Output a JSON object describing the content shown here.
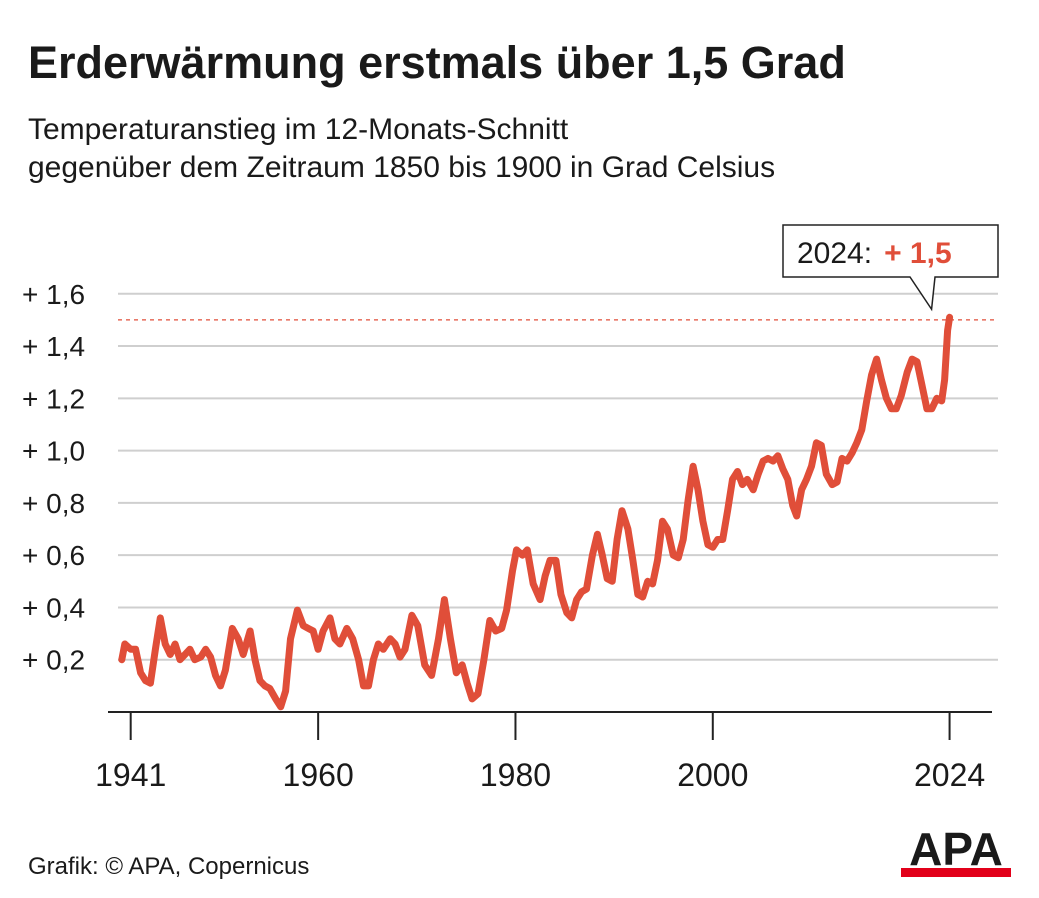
{
  "chart_data": {
    "type": "line",
    "title": "Erderwärmung erstmals über 1,5 Grad",
    "subtitle": [
      "Temperaturanstieg im 12-Monats-Schnitt",
      "gegenüber dem Zeitraum 1850 bis 1900 in Grad Celsius"
    ],
    "color": "#e04e39",
    "x": [
      1940.1,
      1940.4,
      1941.0,
      1941.5,
      1942.0,
      1942.5,
      1943.0,
      1943.5,
      1944.0,
      1944.5,
      1945.0,
      1945.5,
      1946.0,
      1946.5,
      1947.0,
      1947.5,
      1948.1,
      1948.6,
      1949.1,
      1949.6,
      1950.1,
      1950.6,
      1951.3,
      1951.9,
      1952.4,
      1953.1,
      1953.6,
      1954.1,
      1954.6,
      1955.1,
      1955.7,
      1956.2,
      1956.7,
      1957.2,
      1957.9,
      1958.5,
      1959.0,
      1959.5,
      1960.0,
      1960.5,
      1961.2,
      1961.7,
      1962.2,
      1962.9,
      1963.5,
      1964.1,
      1964.6,
      1965.1,
      1965.6,
      1966.1,
      1966.6,
      1967.3,
      1967.8,
      1968.3,
      1968.8,
      1969.5,
      1970.1,
      1970.8,
      1971.5,
      1972.2,
      1972.8,
      1973.4,
      1974.0,
      1974.6,
      1975.1,
      1975.6,
      1976.2,
      1976.8,
      1977.4,
      1978.0,
      1978.6,
      1979.1,
      1979.7,
      1980.1,
      1980.7,
      1981.2,
      1981.8,
      1982.5,
      1983.0,
      1983.5,
      1984.1,
      1984.6,
      1985.2,
      1985.7,
      1986.2,
      1986.7,
      1987.2,
      1987.8,
      1988.3,
      1988.8,
      1989.3,
      1989.8,
      1990.3,
      1990.8,
      1991.4,
      1991.9,
      1992.4,
      1992.9,
      1993.4,
      1993.9,
      1994.4,
      1994.9,
      1995.4,
      1996.0,
      1996.5,
      1997.0,
      1997.5,
      1998.0,
      1998.5,
      1999.0,
      1999.5,
      2000.0,
      2000.5,
      2001.0,
      2001.5,
      2002.0,
      2002.5,
      2003.0,
      2003.5,
      2004.1,
      2004.6,
      2005.1,
      2005.6,
      2006.1,
      2006.6,
      2007.1,
      2007.6,
      2008.1,
      2008.5,
      2009.0,
      2009.5,
      2010.0,
      2010.5,
      2011.0,
      2011.5,
      2012.1,
      2012.6,
      2013.1,
      2013.6,
      2014.1,
      2014.6,
      2015.1,
      2015.6,
      2016.1,
      2016.6,
      2017.1,
      2017.6,
      2018.1,
      2018.6,
      2019.1,
      2019.7,
      2020.2,
      2020.7,
      2021.2,
      2021.7,
      2022.2,
      2022.7,
      2023.2,
      2023.5,
      2023.8,
      2024.0
    ],
    "values": [
      0.2,
      0.26,
      0.24,
      0.24,
      0.15,
      0.12,
      0.11,
      0.24,
      0.36,
      0.26,
      0.22,
      0.26,
      0.2,
      0.22,
      0.24,
      0.2,
      0.21,
      0.24,
      0.21,
      0.14,
      0.1,
      0.16,
      0.32,
      0.28,
      0.22,
      0.31,
      0.2,
      0.12,
      0.1,
      0.09,
      0.05,
      0.02,
      0.08,
      0.28,
      0.39,
      0.33,
      0.32,
      0.31,
      0.24,
      0.31,
      0.36,
      0.28,
      0.26,
      0.32,
      0.28,
      0.2,
      0.1,
      0.1,
      0.2,
      0.26,
      0.24,
      0.28,
      0.26,
      0.21,
      0.24,
      0.37,
      0.33,
      0.18,
      0.14,
      0.28,
      0.43,
      0.28,
      0.15,
      0.18,
      0.11,
      0.05,
      0.07,
      0.2,
      0.35,
      0.31,
      0.32,
      0.39,
      0.54,
      0.62,
      0.6,
      0.62,
      0.49,
      0.43,
      0.52,
      0.58,
      0.58,
      0.45,
      0.38,
      0.36,
      0.43,
      0.46,
      0.47,
      0.6,
      0.68,
      0.6,
      0.51,
      0.5,
      0.66,
      0.77,
      0.7,
      0.58,
      0.45,
      0.44,
      0.5,
      0.49,
      0.58,
      0.73,
      0.7,
      0.6,
      0.59,
      0.66,
      0.81,
      0.94,
      0.85,
      0.73,
      0.64,
      0.63,
      0.66,
      0.66,
      0.77,
      0.89,
      0.92,
      0.87,
      0.89,
      0.85,
      0.91,
      0.96,
      0.97,
      0.96,
      0.98,
      0.93,
      0.89,
      0.79,
      0.75,
      0.85,
      0.89,
      0.94,
      1.03,
      1.02,
      0.91,
      0.87,
      0.88,
      0.97,
      0.96,
      0.99,
      1.03,
      1.08,
      1.19,
      1.29,
      1.35,
      1.27,
      1.2,
      1.16,
      1.16,
      1.21,
      1.3,
      1.35,
      1.34,
      1.25,
      1.16,
      1.16,
      1.2,
      1.19,
      1.27,
      1.46,
      1.51
    ],
    "xlim": [
      1938.7,
      2028.3
    ],
    "xticks": [
      1941,
      1960,
      1980,
      2000,
      2024
    ],
    "ylim": [
      0,
      1.65
    ],
    "yticks": [
      {
        "value": 0.2,
        "label": "+ 0,2"
      },
      {
        "value": 0.4,
        "label": "+ 0,4"
      },
      {
        "value": 0.6,
        "label": "+ 0,6"
      },
      {
        "value": 0.8,
        "label": "+ 0,8"
      },
      {
        "value": 1.0,
        "label": "+ 1,0"
      },
      {
        "value": 1.2,
        "label": "+ 1,2"
      },
      {
        "value": 1.4,
        "label": "+ 1,4"
      },
      {
        "value": 1.6,
        "label": "+ 1,6"
      }
    ],
    "grid": true,
    "annotation": {
      "label": "2024:",
      "value": 1.5,
      "value_label": "+ 1,5"
    }
  },
  "source": "Grafik: © APA, Copernicus",
  "logo": "APA"
}
